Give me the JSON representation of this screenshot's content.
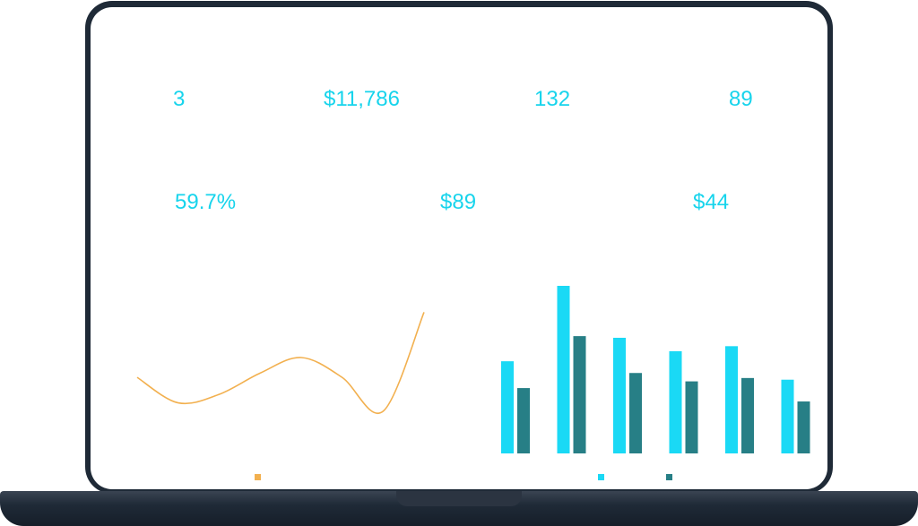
{
  "colors": {
    "accent": "#17d4ec",
    "bar_primary": "#1ad9f5",
    "bar_secondary": "#277f86",
    "line": "#f2b04f",
    "frame": "#1f2a37"
  },
  "metrics_row1": [
    "3",
    "$11,786",
    "132",
    "89"
  ],
  "metrics_row2": [
    "59.7%",
    "$89",
    "$44"
  ],
  "chart_data": [
    {
      "type": "line",
      "x": [
        0,
        1,
        2,
        3,
        4,
        5,
        6,
        7
      ],
      "values": [
        36,
        18,
        24,
        39,
        50,
        36,
        12,
        82
      ],
      "color": "#f2b04f",
      "smooth": true
    },
    {
      "type": "bar",
      "categories": [
        "",
        "",
        "",
        "",
        "",
        ""
      ],
      "series": [
        {
          "values": [
            55,
            100,
            69,
            61,
            64,
            44
          ],
          "color": "#1ad9f5"
        },
        {
          "values": [
            39,
            70,
            48,
            43,
            45,
            31
          ],
          "color": "#277f86"
        }
      ],
      "ylim": [
        0,
        100
      ]
    }
  ],
  "legend": {
    "line_marker_color": "#f2b04f",
    "bar_marker_colors": [
      "#1ad9f5",
      "#277f86"
    ]
  }
}
